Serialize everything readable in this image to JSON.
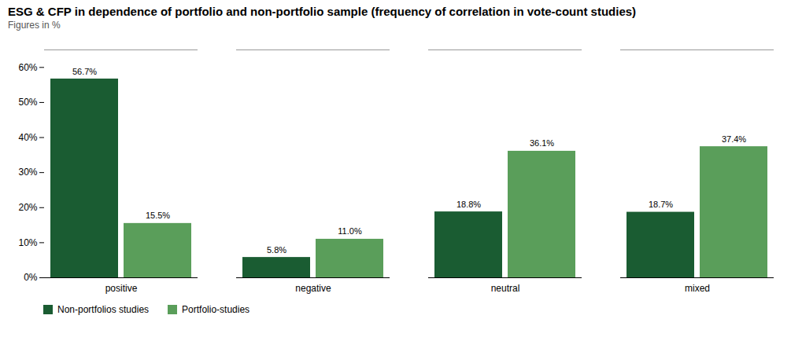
{
  "chart_data": {
    "type": "bar",
    "title": "ESG & CFP in dependence of portfolio and non-portfolio sample (frequency of correlation in vote-count studies)",
    "subtitle": "Figures in %",
    "categories": [
      "positive",
      "negative",
      "neutral",
      "mixed"
    ],
    "series": [
      {
        "name": "Non-portfolios studies",
        "color": "#1a5c32",
        "values": [
          56.7,
          5.8,
          18.8,
          18.7
        ],
        "value_labels": [
          "56.7%",
          "5.8%",
          "18.8%",
          "18.7%"
        ]
      },
      {
        "name": "Portfolio-studies",
        "color": "#5a9e5a",
        "values": [
          15.5,
          11.0,
          36.1,
          37.4
        ],
        "value_labels": [
          "15.5%",
          "11.0%",
          "36.1%",
          "37.4%"
        ]
      }
    ],
    "ylim": [
      0,
      65
    ],
    "yticks": [
      {
        "value": 0,
        "label": "0%"
      },
      {
        "value": 10,
        "label": "10%"
      },
      {
        "value": 20,
        "label": "20%"
      },
      {
        "value": 30,
        "label": "30%"
      },
      {
        "value": 40,
        "label": "40%"
      },
      {
        "value": 50,
        "label": "50%"
      },
      {
        "value": 60,
        "label": "60%"
      }
    ],
    "grid": false,
    "legend": "bottom",
    "data_labels": true
  }
}
